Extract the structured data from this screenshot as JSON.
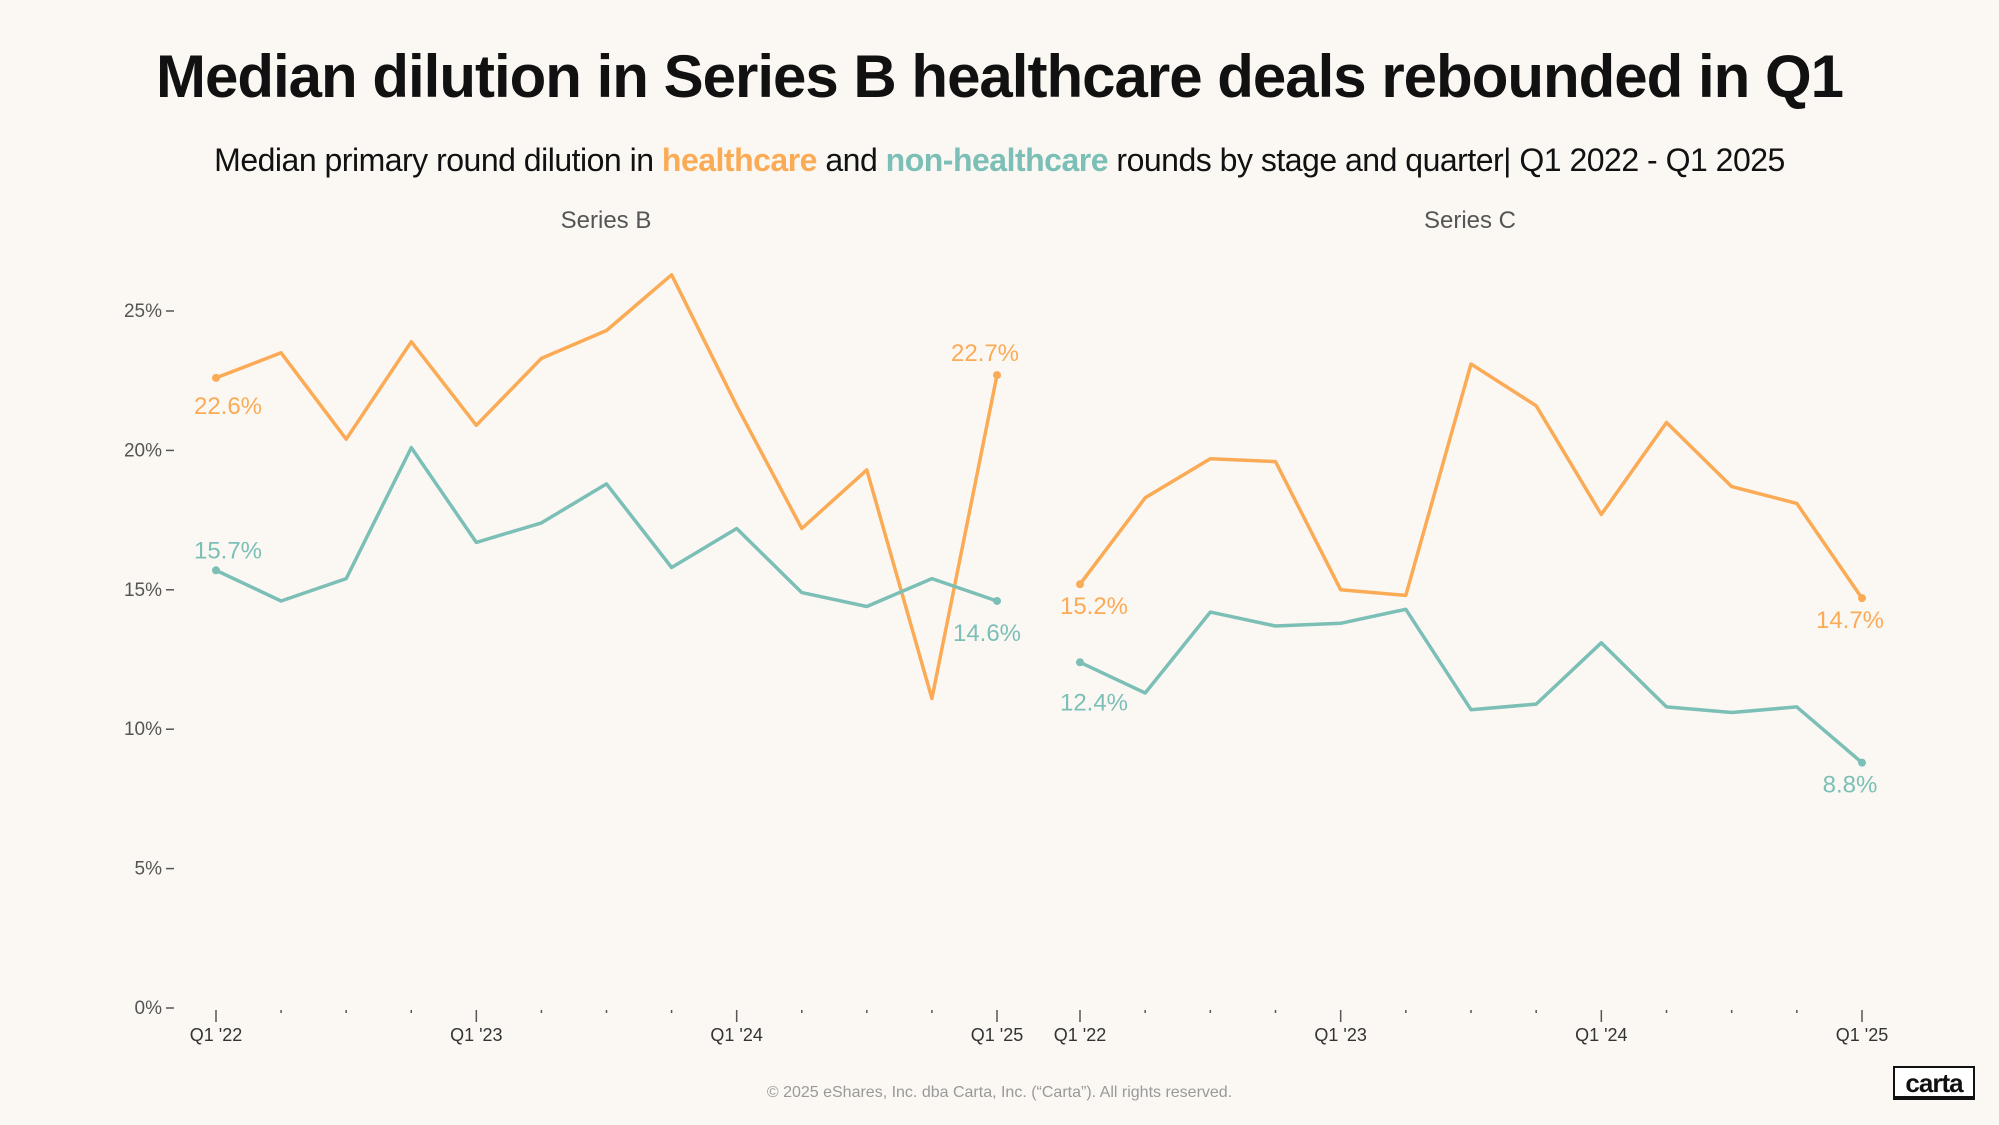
{
  "header": {
    "title": "Median dilution in Series B healthcare deals rebounded in Q1",
    "subtitle_parts": [
      "Median primary round dilution in ",
      "healthcare",
      " and ",
      "non-healthcare",
      " rounds by stage and quarter| Q1 2022 - Q1 2025"
    ]
  },
  "colors": {
    "healthcare": "#fbab55",
    "non_healthcare": "#7bbfb6",
    "background": "#fbf8f4"
  },
  "chart_data": [
    {
      "type": "line",
      "title": "Series B",
      "x": [
        "Q1 '22",
        "Q2 '22",
        "Q3 '22",
        "Q4 '22",
        "Q1 '23",
        "Q2 '23",
        "Q3 '23",
        "Q4 '23",
        "Q1 '24",
        "Q2 '24",
        "Q3 '24",
        "Q4 '24",
        "Q1 '25"
      ],
      "xtick_labels": [
        "Q1 '22",
        "Q1 '23",
        "Q1 '24",
        "Q1 '25"
      ],
      "yticks": [
        "0%",
        "5%",
        "10%",
        "15%",
        "20%",
        "25%"
      ],
      "ylim": [
        0,
        26.5
      ],
      "series": [
        {
          "name": "healthcare",
          "values": [
            22.6,
            23.5,
            20.4,
            23.9,
            20.9,
            23.3,
            24.3,
            26.3,
            21.6,
            17.2,
            19.3,
            11.1,
            22.7
          ],
          "labels": [
            "22.6%",
            "22.7%"
          ]
        },
        {
          "name": "non-healthcare",
          "values": [
            15.7,
            14.6,
            15.4,
            20.1,
            16.7,
            17.4,
            18.8,
            15.8,
            17.2,
            14.9,
            14.4,
            15.4,
            14.6
          ],
          "labels": [
            "15.7%",
            "14.6%"
          ]
        }
      ]
    },
    {
      "type": "line",
      "title": "Series C",
      "x": [
        "Q1 '22",
        "Q2 '22",
        "Q3 '22",
        "Q4 '22",
        "Q1 '23",
        "Q2 '23",
        "Q3 '23",
        "Q4 '23",
        "Q1 '24",
        "Q2 '24",
        "Q3 '24",
        "Q4 '24",
        "Q1 '25"
      ],
      "xtick_labels": [
        "Q1 '22",
        "Q1 '23",
        "Q1 '24",
        "Q1 '25"
      ],
      "ylim": [
        0,
        26.5
      ],
      "series": [
        {
          "name": "healthcare",
          "values": [
            15.2,
            18.3,
            19.7,
            19.6,
            15.0,
            14.8,
            23.1,
            21.6,
            17.7,
            21.0,
            18.7,
            18.1,
            14.7
          ],
          "labels": [
            "15.2%",
            "14.7%"
          ]
        },
        {
          "name": "non-healthcare",
          "values": [
            12.4,
            11.3,
            14.2,
            13.7,
            13.8,
            14.3,
            10.7,
            10.9,
            13.1,
            10.8,
            10.6,
            10.8,
            8.8
          ],
          "labels": [
            "12.4%",
            "8.8%"
          ]
        }
      ]
    }
  ],
  "footer": {
    "copyright": "© 2025 eShares, Inc. dba Carta, Inc. (“Carta”). All rights reserved.",
    "logo": "carta"
  }
}
